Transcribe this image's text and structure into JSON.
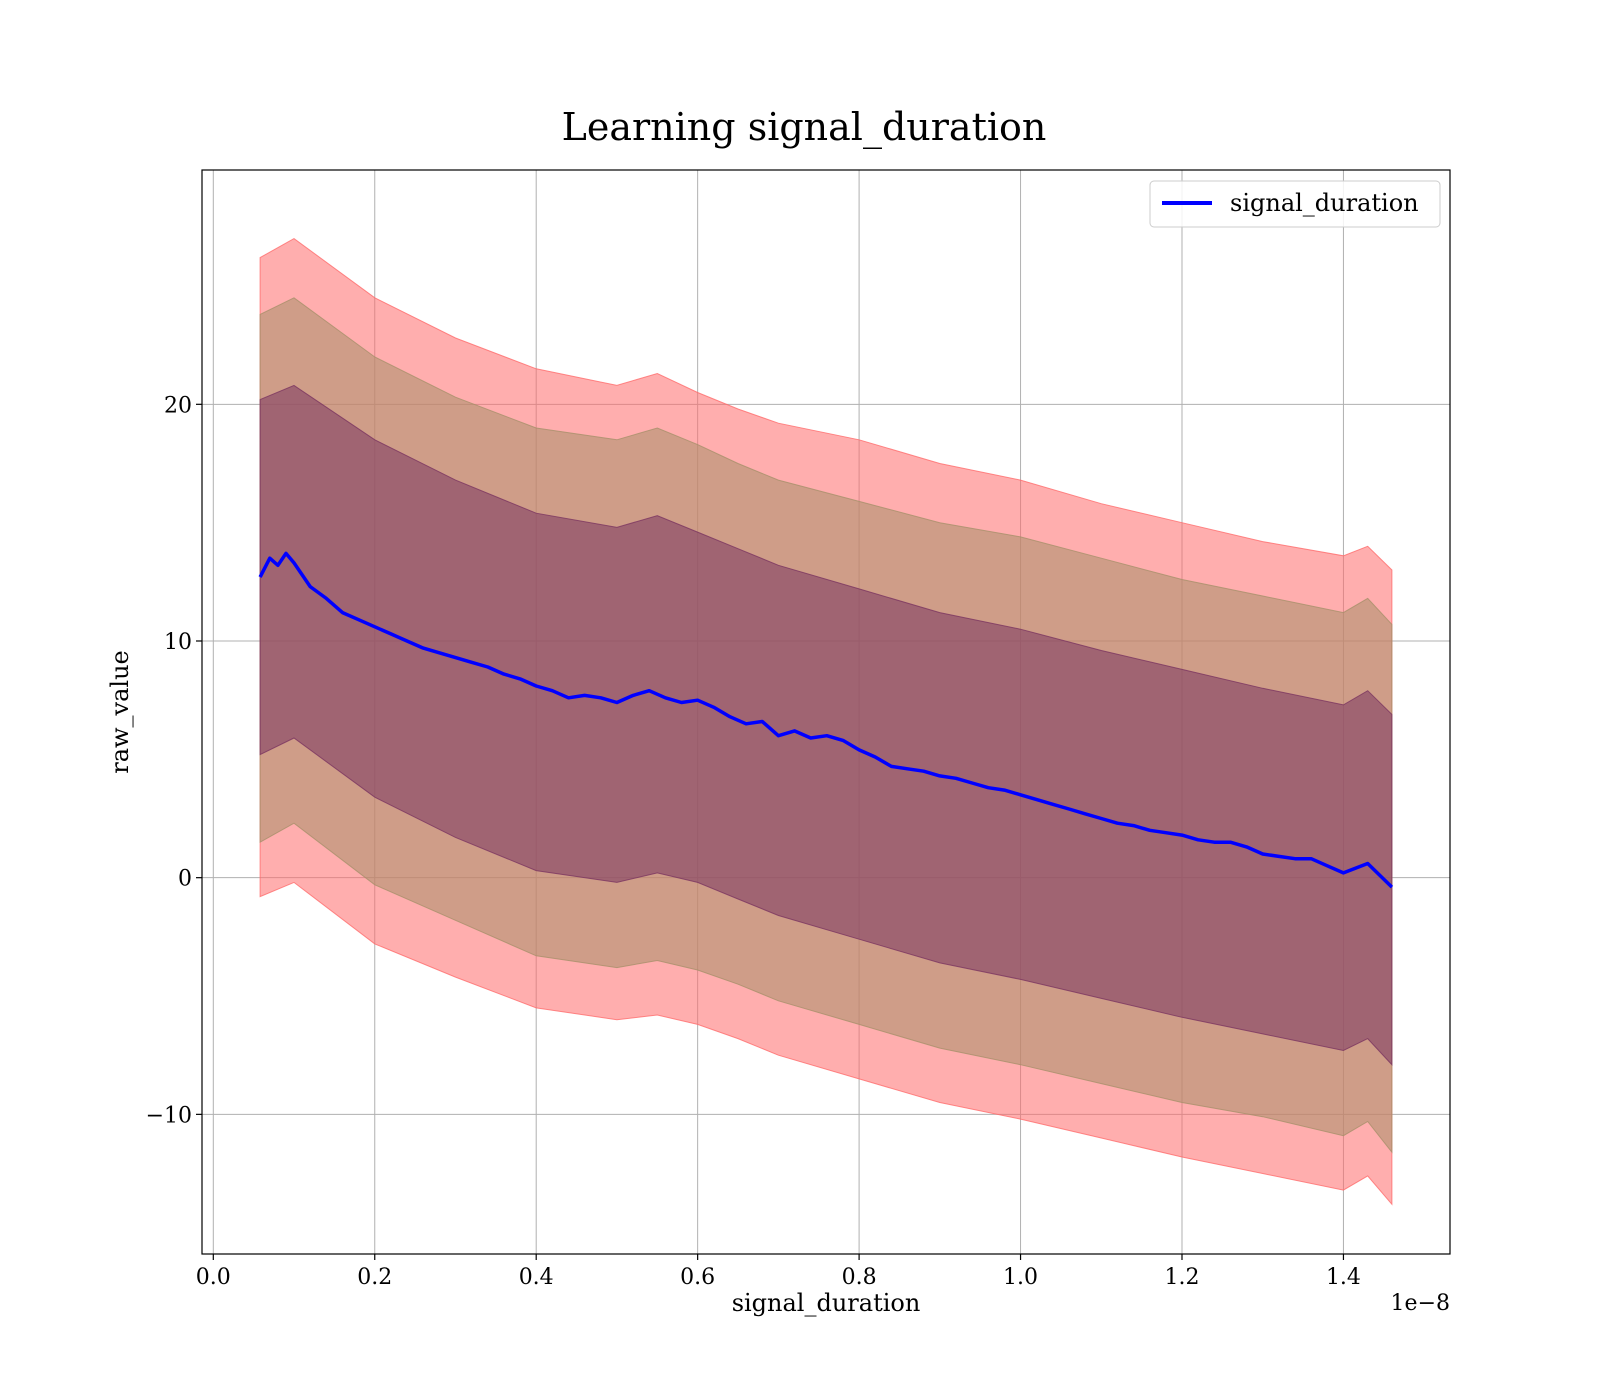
{
  "chart_data": {
    "type": "area",
    "title": "Learning signal_duration",
    "xlabel": "signal_duration",
    "ylabel": "raw_value",
    "x_offset_label": "1e−8",
    "xlim": [
      -0.014,
      1.532
    ],
    "ylim": [
      -15.9,
      29.9
    ],
    "x_ticks": [
      0.0,
      0.2,
      0.4,
      0.6,
      0.8,
      1.0,
      1.2,
      1.4
    ],
    "x_tick_labels": [
      "0.0",
      "0.2",
      "0.4",
      "0.6",
      "0.8",
      "1.0",
      "1.2",
      "1.4"
    ],
    "y_ticks": [
      -10,
      0,
      10,
      20
    ],
    "y_tick_labels": [
      "−10",
      "0",
      "10",
      "20"
    ],
    "grid": true,
    "legend": {
      "position": "top-right",
      "entries": [
        "signal_duration"
      ]
    },
    "series": [
      {
        "name": "signal_duration",
        "color": "#0000ff",
        "x": [
          0.058,
          0.07,
          0.08,
          0.09,
          0.1,
          0.11,
          0.12,
          0.14,
          0.16,
          0.18,
          0.2,
          0.22,
          0.24,
          0.26,
          0.28,
          0.3,
          0.32,
          0.34,
          0.36,
          0.38,
          0.4,
          0.42,
          0.44,
          0.46,
          0.48,
          0.5,
          0.52,
          0.54,
          0.56,
          0.58,
          0.6,
          0.62,
          0.64,
          0.66,
          0.68,
          0.7,
          0.72,
          0.74,
          0.76,
          0.78,
          0.8,
          0.82,
          0.84,
          0.86,
          0.88,
          0.9,
          0.92,
          0.94,
          0.96,
          0.98,
          1.0,
          1.02,
          1.04,
          1.06,
          1.08,
          1.1,
          1.12,
          1.14,
          1.16,
          1.18,
          1.2,
          1.22,
          1.24,
          1.26,
          1.28,
          1.3,
          1.32,
          1.34,
          1.36,
          1.38,
          1.4,
          1.43,
          1.46
        ],
        "y": [
          12.7,
          13.5,
          13.2,
          13.7,
          13.3,
          12.8,
          12.3,
          11.8,
          11.2,
          10.9,
          10.6,
          10.3,
          10.0,
          9.7,
          9.5,
          9.3,
          9.1,
          8.9,
          8.6,
          8.4,
          8.1,
          7.9,
          7.6,
          7.7,
          7.6,
          7.4,
          7.7,
          7.9,
          7.6,
          7.4,
          7.5,
          7.2,
          6.8,
          6.5,
          6.6,
          6.0,
          6.2,
          5.9,
          6.0,
          5.8,
          5.4,
          5.1,
          4.7,
          4.6,
          4.5,
          4.3,
          4.2,
          4.0,
          3.8,
          3.7,
          3.5,
          3.3,
          3.1,
          2.9,
          2.7,
          2.5,
          2.3,
          2.2,
          2.0,
          1.9,
          1.8,
          1.6,
          1.5,
          1.5,
          1.3,
          1.0,
          0.9,
          0.8,
          0.8,
          0.5,
          0.2,
          0.6,
          -0.4
        ]
      }
    ],
    "bands": [
      {
        "name": "band_outer",
        "color": "#ff6b6b",
        "x": [
          0.058,
          0.1,
          0.2,
          0.3,
          0.4,
          0.5,
          0.55,
          0.6,
          0.65,
          0.7,
          0.8,
          0.9,
          1.0,
          1.1,
          1.2,
          1.3,
          1.4,
          1.43,
          1.46
        ],
        "upper": [
          26.2,
          27.0,
          24.5,
          22.8,
          21.5,
          20.8,
          21.3,
          20.5,
          19.8,
          19.2,
          18.5,
          17.5,
          16.8,
          15.8,
          15.0,
          14.2,
          13.6,
          14.0,
          13.0
        ],
        "lower": [
          -0.8,
          -0.2,
          -2.8,
          -4.2,
          -5.5,
          -6.0,
          -5.8,
          -6.2,
          -6.8,
          -7.5,
          -8.5,
          -9.5,
          -10.2,
          -11.0,
          -11.8,
          -12.5,
          -13.2,
          -12.6,
          -13.8
        ]
      },
      {
        "name": "band_middle",
        "color": "#a8906a",
        "x": [
          0.058,
          0.1,
          0.2,
          0.3,
          0.4,
          0.5,
          0.55,
          0.6,
          0.65,
          0.7,
          0.8,
          0.9,
          1.0,
          1.1,
          1.2,
          1.3,
          1.4,
          1.43,
          1.46
        ],
        "upper": [
          23.8,
          24.5,
          22.0,
          20.3,
          19.0,
          18.5,
          19.0,
          18.3,
          17.5,
          16.8,
          15.9,
          15.0,
          14.4,
          13.5,
          12.6,
          11.9,
          11.2,
          11.8,
          10.7
        ],
        "lower": [
          1.5,
          2.3,
          -0.3,
          -1.8,
          -3.3,
          -3.8,
          -3.5,
          -3.9,
          -4.5,
          -5.2,
          -6.2,
          -7.2,
          -7.9,
          -8.7,
          -9.5,
          -10.1,
          -10.9,
          -10.3,
          -11.6
        ]
      },
      {
        "name": "band_inner",
        "color": "#7a3560",
        "x": [
          0.058,
          0.1,
          0.2,
          0.3,
          0.4,
          0.5,
          0.55,
          0.6,
          0.65,
          0.7,
          0.8,
          0.9,
          1.0,
          1.1,
          1.2,
          1.3,
          1.4,
          1.43,
          1.46
        ],
        "upper": [
          20.2,
          20.8,
          18.5,
          16.8,
          15.4,
          14.8,
          15.3,
          14.6,
          13.9,
          13.2,
          12.2,
          11.2,
          10.5,
          9.6,
          8.8,
          8.0,
          7.3,
          7.9,
          6.9
        ],
        "lower": [
          5.2,
          5.9,
          3.4,
          1.7,
          0.3,
          -0.2,
          0.2,
          -0.2,
          -0.9,
          -1.6,
          -2.6,
          -3.6,
          -4.3,
          -5.1,
          -5.9,
          -6.6,
          -7.3,
          -6.8,
          -7.9
        ]
      }
    ]
  }
}
